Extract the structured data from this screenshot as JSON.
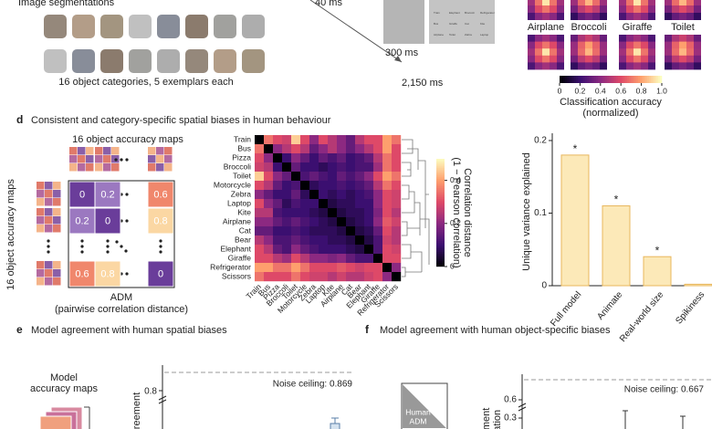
{
  "panel_top": {
    "left_title": "Image segmentations",
    "caption": "16 object categories, 5 exemplars each",
    "timings": [
      "40 ms",
      "300 ms",
      "2,150 ms"
    ],
    "response_words": [
      "Train",
      "Elephant",
      "Broccoli",
      "Refrigerator",
      "Bus",
      "Giraffe",
      "Cat",
      "Kite",
      "Airplane",
      "Toilet",
      "Zebra",
      "Laptop"
    ],
    "map_labels": [
      "Airplane",
      "Broccoli",
      "Giraffe",
      "Toilet"
    ],
    "colorbar": {
      "label": [
        "Classification accuracy",
        "(normalized)"
      ],
      "lim": [
        0,
        1
      ],
      "ticks": [
        0,
        0.2,
        0.4,
        0.6,
        0.8,
        {
          "value": 1,
          "label": "1.0"
        }
      ],
      "colormap": [
        "#000004",
        "#3b0f70",
        "#8c2981",
        "#de4968",
        "#fe9f6d",
        "#fcfdbf"
      ]
    }
  },
  "panel_d": {
    "label": "d",
    "title": "Consistent and category-specific spatial biases in human behaviour",
    "adm": {
      "top_label": "16 object accuracy maps",
      "side_label": "16 object accuracy maps",
      "cells": [
        [
          0,
          0.2,
          0.6
        ],
        [
          0.2,
          0,
          0.8
        ],
        [
          0.6,
          0.8,
          0
        ]
      ],
      "lim": [
        0,
        1
      ],
      "colormap": [
        "#6a3d9a",
        "#9b78c0",
        "#c98aa8",
        "#f0876c",
        "#fbd7a3",
        "#fdf0d0"
      ],
      "title": "ADM",
      "subtitle": "(pairwise correlation distance)"
    }
  },
  "chart_data": [
    {
      "type": "heatmap",
      "categories": [
        "Train",
        "Bus",
        "Pizza",
        "Broccoli",
        "Toilet",
        "Motorcycle",
        "Zebra",
        "Laptop",
        "Kite",
        "Airplane",
        "Cat",
        "Bear",
        "Elephant",
        "Giraffe",
        "Refrigerator",
        "Scissors"
      ],
      "values": [
        [
          0,
          0.35,
          0.3,
          0.28,
          0.45,
          0.3,
          0.2,
          0.3,
          0.25,
          0.2,
          0.15,
          0.25,
          0.3,
          0.3,
          0.4,
          0.35
        ],
        [
          0.35,
          0,
          0.2,
          0.25,
          0.3,
          0.25,
          0.15,
          0.2,
          0.25,
          0.2,
          0.15,
          0.2,
          0.25,
          0.3,
          0.4,
          0.3
        ],
        [
          0.3,
          0.2,
          0,
          0.1,
          0.2,
          0.15,
          0.1,
          0.15,
          0.12,
          0.15,
          0.1,
          0.12,
          0.15,
          0.25,
          0.35,
          0.3
        ],
        [
          0.28,
          0.25,
          0.1,
          0,
          0.15,
          0.1,
          0.1,
          0.08,
          0.1,
          0.12,
          0.1,
          0.12,
          0.12,
          0.22,
          0.35,
          0.3
        ],
        [
          0.45,
          0.3,
          0.2,
          0.15,
          0,
          0.12,
          0.15,
          0.12,
          0.1,
          0.15,
          0.12,
          0.15,
          0.2,
          0.3,
          0.4,
          0.35
        ],
        [
          0.3,
          0.25,
          0.15,
          0.1,
          0.12,
          0,
          0.08,
          0.1,
          0.1,
          0.12,
          0.1,
          0.12,
          0.15,
          0.25,
          0.35,
          0.3
        ],
        [
          0.2,
          0.15,
          0.1,
          0.1,
          0.15,
          0.08,
          0,
          0.1,
          0.08,
          0.1,
          0.08,
          0.1,
          0.12,
          0.2,
          0.3,
          0.28
        ],
        [
          0.3,
          0.2,
          0.15,
          0.08,
          0.12,
          0.1,
          0.1,
          0,
          0.06,
          0.08,
          0.08,
          0.1,
          0.1,
          0.2,
          0.3,
          0.28
        ],
        [
          0.25,
          0.25,
          0.12,
          0.1,
          0.1,
          0.1,
          0.08,
          0.06,
          0,
          0.06,
          0.08,
          0.08,
          0.1,
          0.18,
          0.3,
          0.25
        ],
        [
          0.2,
          0.2,
          0.15,
          0.12,
          0.15,
          0.12,
          0.1,
          0.08,
          0.06,
          0,
          0.06,
          0.08,
          0.1,
          0.2,
          0.32,
          0.28
        ],
        [
          0.15,
          0.15,
          0.1,
          0.1,
          0.12,
          0.1,
          0.08,
          0.08,
          0.08,
          0.06,
          0,
          0.06,
          0.08,
          0.15,
          0.3,
          0.25
        ],
        [
          0.25,
          0.2,
          0.12,
          0.12,
          0.15,
          0.12,
          0.1,
          0.1,
          0.08,
          0.08,
          0.06,
          0,
          0.06,
          0.12,
          0.28,
          0.25
        ],
        [
          0.3,
          0.25,
          0.15,
          0.12,
          0.2,
          0.15,
          0.12,
          0.1,
          0.1,
          0.1,
          0.08,
          0.06,
          0,
          0.12,
          0.3,
          0.28
        ],
        [
          0.3,
          0.3,
          0.25,
          0.22,
          0.3,
          0.25,
          0.2,
          0.2,
          0.18,
          0.2,
          0.15,
          0.12,
          0.12,
          0,
          0.3,
          0.3
        ],
        [
          0.4,
          0.4,
          0.35,
          0.35,
          0.4,
          0.35,
          0.3,
          0.3,
          0.3,
          0.32,
          0.3,
          0.28,
          0.3,
          0.3,
          0,
          0.2
        ],
        [
          0.35,
          0.3,
          0.3,
          0.3,
          0.35,
          0.3,
          0.28,
          0.28,
          0.25,
          0.28,
          0.25,
          0.25,
          0.28,
          0.3,
          0.2,
          0
        ]
      ],
      "zlim": [
        0,
        0.5
      ],
      "colorbar_ticks": [
        0,
        0.2,
        0.4
      ],
      "colorbar_label": [
        "Correlation distance",
        "(1 − Pearson correlation)"
      ],
      "colormap": [
        "#000004",
        "#3b0f70",
        "#8c2981",
        "#de4968",
        "#fe9f6d",
        "#fcfdbf"
      ]
    },
    {
      "type": "bar",
      "categories": [
        "Full model",
        "Animate",
        "Real-world size",
        "Spikiness"
      ],
      "values": [
        0.18,
        0.11,
        0.04,
        0.002
      ],
      "markers": [
        "*",
        "*",
        "*",
        null
      ],
      "ylabel": "Unique variance explained",
      "ylim": [
        0,
        0.205
      ],
      "yticks": [
        0,
        0.1,
        0.2
      ],
      "color": "#fce9b8",
      "edgecolor": "#e8b75d"
    }
  ],
  "panel_e": {
    "label": "e",
    "title": "Model agreement with human spatial biases",
    "side_text": [
      "Model",
      "accuracy maps"
    ],
    "ylabel": "reement",
    "yticks": [
      0.8
    ],
    "noise_ceiling_label": "Noise ceiling: 0.869"
  },
  "panel_f": {
    "label": "f",
    "title": "Model agreement with human object-specific biases",
    "box_text": [
      "Human",
      "ADM"
    ],
    "ylabel": [
      "ement",
      "lation"
    ],
    "yticks": [
      0.6,
      0.3
    ],
    "noise_ceiling_label": "Noise ceiling: 0.667"
  }
}
